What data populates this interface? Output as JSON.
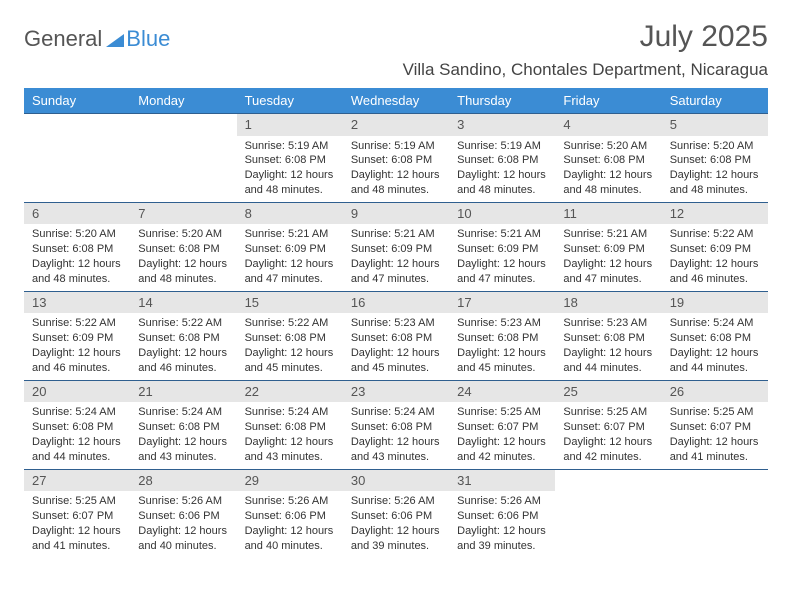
{
  "brand": {
    "part1": "General",
    "part2": "Blue"
  },
  "title": "July 2025",
  "location": "Villa Sandino, Chontales Department, Nicaragua",
  "colors": {
    "header_bg": "#3b8cd4",
    "header_text": "#ffffff",
    "daynum_bg": "#e6e6e6",
    "row_border": "#2f5f8f",
    "brand_gray": "#555555",
    "brand_blue": "#3b8cd4",
    "body_text": "#333333",
    "background": "#ffffff"
  },
  "typography": {
    "title_fontsize": 30,
    "location_fontsize": 17,
    "dayheader_fontsize": 13,
    "daynum_fontsize": 13,
    "cell_fontsize": 11
  },
  "layout": {
    "columns": 7,
    "rows": 5,
    "first_day_column_index": 2
  },
  "day_headers": [
    "Sunday",
    "Monday",
    "Tuesday",
    "Wednesday",
    "Thursday",
    "Friday",
    "Saturday"
  ],
  "days": [
    {
      "n": "1",
      "sunrise": "5:19 AM",
      "sunset": "6:08 PM",
      "daylight": "12 hours and 48 minutes."
    },
    {
      "n": "2",
      "sunrise": "5:19 AM",
      "sunset": "6:08 PM",
      "daylight": "12 hours and 48 minutes."
    },
    {
      "n": "3",
      "sunrise": "5:19 AM",
      "sunset": "6:08 PM",
      "daylight": "12 hours and 48 minutes."
    },
    {
      "n": "4",
      "sunrise": "5:20 AM",
      "sunset": "6:08 PM",
      "daylight": "12 hours and 48 minutes."
    },
    {
      "n": "5",
      "sunrise": "5:20 AM",
      "sunset": "6:08 PM",
      "daylight": "12 hours and 48 minutes."
    },
    {
      "n": "6",
      "sunrise": "5:20 AM",
      "sunset": "6:08 PM",
      "daylight": "12 hours and 48 minutes."
    },
    {
      "n": "7",
      "sunrise": "5:20 AM",
      "sunset": "6:08 PM",
      "daylight": "12 hours and 48 minutes."
    },
    {
      "n": "8",
      "sunrise": "5:21 AM",
      "sunset": "6:09 PM",
      "daylight": "12 hours and 47 minutes."
    },
    {
      "n": "9",
      "sunrise": "5:21 AM",
      "sunset": "6:09 PM",
      "daylight": "12 hours and 47 minutes."
    },
    {
      "n": "10",
      "sunrise": "5:21 AM",
      "sunset": "6:09 PM",
      "daylight": "12 hours and 47 minutes."
    },
    {
      "n": "11",
      "sunrise": "5:21 AM",
      "sunset": "6:09 PM",
      "daylight": "12 hours and 47 minutes."
    },
    {
      "n": "12",
      "sunrise": "5:22 AM",
      "sunset": "6:09 PM",
      "daylight": "12 hours and 46 minutes."
    },
    {
      "n": "13",
      "sunrise": "5:22 AM",
      "sunset": "6:09 PM",
      "daylight": "12 hours and 46 minutes."
    },
    {
      "n": "14",
      "sunrise": "5:22 AM",
      "sunset": "6:08 PM",
      "daylight": "12 hours and 46 minutes."
    },
    {
      "n": "15",
      "sunrise": "5:22 AM",
      "sunset": "6:08 PM",
      "daylight": "12 hours and 45 minutes."
    },
    {
      "n": "16",
      "sunrise": "5:23 AM",
      "sunset": "6:08 PM",
      "daylight": "12 hours and 45 minutes."
    },
    {
      "n": "17",
      "sunrise": "5:23 AM",
      "sunset": "6:08 PM",
      "daylight": "12 hours and 45 minutes."
    },
    {
      "n": "18",
      "sunrise": "5:23 AM",
      "sunset": "6:08 PM",
      "daylight": "12 hours and 44 minutes."
    },
    {
      "n": "19",
      "sunrise": "5:24 AM",
      "sunset": "6:08 PM",
      "daylight": "12 hours and 44 minutes."
    },
    {
      "n": "20",
      "sunrise": "5:24 AM",
      "sunset": "6:08 PM",
      "daylight": "12 hours and 44 minutes."
    },
    {
      "n": "21",
      "sunrise": "5:24 AM",
      "sunset": "6:08 PM",
      "daylight": "12 hours and 43 minutes."
    },
    {
      "n": "22",
      "sunrise": "5:24 AM",
      "sunset": "6:08 PM",
      "daylight": "12 hours and 43 minutes."
    },
    {
      "n": "23",
      "sunrise": "5:24 AM",
      "sunset": "6:08 PM",
      "daylight": "12 hours and 43 minutes."
    },
    {
      "n": "24",
      "sunrise": "5:25 AM",
      "sunset": "6:07 PM",
      "daylight": "12 hours and 42 minutes."
    },
    {
      "n": "25",
      "sunrise": "5:25 AM",
      "sunset": "6:07 PM",
      "daylight": "12 hours and 42 minutes."
    },
    {
      "n": "26",
      "sunrise": "5:25 AM",
      "sunset": "6:07 PM",
      "daylight": "12 hours and 41 minutes."
    },
    {
      "n": "27",
      "sunrise": "5:25 AM",
      "sunset": "6:07 PM",
      "daylight": "12 hours and 41 minutes."
    },
    {
      "n": "28",
      "sunrise": "5:26 AM",
      "sunset": "6:06 PM",
      "daylight": "12 hours and 40 minutes."
    },
    {
      "n": "29",
      "sunrise": "5:26 AM",
      "sunset": "6:06 PM",
      "daylight": "12 hours and 40 minutes."
    },
    {
      "n": "30",
      "sunrise": "5:26 AM",
      "sunset": "6:06 PM",
      "daylight": "12 hours and 39 minutes."
    },
    {
      "n": "31",
      "sunrise": "5:26 AM",
      "sunset": "6:06 PM",
      "daylight": "12 hours and 39 minutes."
    }
  ],
  "labels": {
    "sunrise": "Sunrise:",
    "sunset": "Sunset:",
    "daylight": "Daylight:"
  }
}
